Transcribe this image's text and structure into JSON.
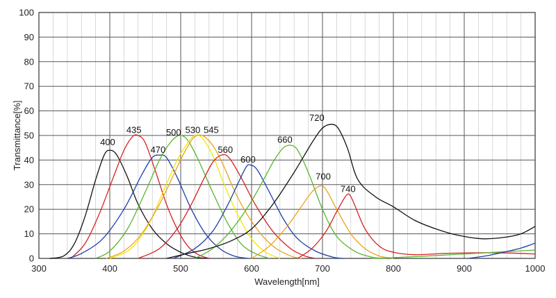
{
  "chart_data": {
    "type": "line",
    "title": "",
    "xlabel": "Wavelength[nm]",
    "ylabel": "Transmittance[%]",
    "xlim": [
      300,
      1000
    ],
    "ylim": [
      0,
      100
    ],
    "x_ticks": [
      "300",
      "400",
      "500",
      "600",
      "700",
      "800",
      "900",
      "1000"
    ],
    "y_ticks": [
      "0",
      "10",
      "20",
      "30",
      "40",
      "50",
      "60",
      "70",
      "80",
      "90",
      "100"
    ],
    "grid": true,
    "legend": "none",
    "series": [
      {
        "name": "400",
        "color": "#111111",
        "label_at": [
          397,
          46
        ],
        "points": [
          [
            315,
            0
          ],
          [
            335,
            1
          ],
          [
            350,
            6
          ],
          [
            365,
            17
          ],
          [
            380,
            32
          ],
          [
            392,
            42
          ],
          [
            400,
            44
          ],
          [
            410,
            42
          ],
          [
            425,
            33
          ],
          [
            440,
            22
          ],
          [
            460,
            12
          ],
          [
            480,
            6
          ],
          [
            500,
            2.5
          ],
          [
            520,
            0.5
          ],
          [
            540,
            0
          ]
        ]
      },
      {
        "name": "435",
        "color": "#d62020",
        "label_at": [
          434,
          51
        ],
        "points": [
          [
            345,
            0
          ],
          [
            365,
            6
          ],
          [
            385,
            18
          ],
          [
            405,
            33
          ],
          [
            420,
            44
          ],
          [
            432,
            49.5
          ],
          [
            440,
            50
          ],
          [
            450,
            47
          ],
          [
            465,
            35
          ],
          [
            480,
            22
          ],
          [
            495,
            12
          ],
          [
            510,
            5
          ],
          [
            525,
            1.5
          ],
          [
            540,
            0
          ]
        ]
      },
      {
        "name": "470",
        "color": "#1f3fa8",
        "label_at": [
          468,
          43
        ],
        "points": [
          [
            340,
            0
          ],
          [
            360,
            2
          ],
          [
            390,
            8
          ],
          [
            420,
            20
          ],
          [
            445,
            34
          ],
          [
            460,
            41
          ],
          [
            470,
            42
          ],
          [
            480,
            41
          ],
          [
            495,
            33
          ],
          [
            515,
            20
          ],
          [
            535,
            10
          ],
          [
            555,
            4
          ],
          [
            575,
            1
          ],
          [
            595,
            0
          ]
        ]
      },
      {
        "name": "500",
        "color": "#59b52e",
        "label_at": [
          490,
          50
        ],
        "points": [
          [
            380,
            0
          ],
          [
            400,
            3
          ],
          [
            425,
            12
          ],
          [
            450,
            27
          ],
          [
            470,
            40
          ],
          [
            485,
            47
          ],
          [
            498,
            50
          ],
          [
            510,
            48
          ],
          [
            525,
            40
          ],
          [
            545,
            27
          ],
          [
            565,
            15
          ],
          [
            585,
            6
          ],
          [
            605,
            2
          ],
          [
            625,
            0
          ]
        ]
      },
      {
        "name": "530",
        "color": "#f2e600",
        "label_at": [
          517,
          51
        ],
        "points": [
          [
            400,
            0
          ],
          [
            430,
            4
          ],
          [
            455,
            14
          ],
          [
            475,
            27
          ],
          [
            495,
            40
          ],
          [
            510,
            47
          ],
          [
            520,
            50
          ],
          [
            530,
            49
          ],
          [
            545,
            42
          ],
          [
            560,
            31
          ],
          [
            580,
            18
          ],
          [
            600,
            8
          ],
          [
            620,
            2.5
          ],
          [
            640,
            0
          ]
        ]
      },
      {
        "name": "545",
        "color": "#e8a318",
        "label_at": [
          543,
          51
        ],
        "points": [
          [
            395,
            0
          ],
          [
            420,
            3
          ],
          [
            445,
            10
          ],
          [
            470,
            22
          ],
          [
            490,
            34
          ],
          [
            505,
            43
          ],
          [
            518,
            49
          ],
          [
            530,
            50
          ],
          [
            545,
            46
          ],
          [
            560,
            38
          ],
          [
            580,
            25
          ],
          [
            605,
            13
          ],
          [
            630,
            5
          ],
          [
            655,
            1
          ],
          [
            670,
            0
          ]
        ]
      },
      {
        "name": "560",
        "color": "#d62020",
        "label_at": [
          563,
          43
        ],
        "points": [
          [
            440,
            0
          ],
          [
            470,
            4
          ],
          [
            495,
            12
          ],
          [
            515,
            22
          ],
          [
            532,
            32
          ],
          [
            545,
            39
          ],
          [
            557,
            42
          ],
          [
            568,
            41
          ],
          [
            585,
            33
          ],
          [
            605,
            22
          ],
          [
            630,
            11
          ],
          [
            655,
            4
          ],
          [
            675,
            1
          ],
          [
            690,
            0
          ]
        ]
      },
      {
        "name": "600",
        "color": "#1f3fa8",
        "label_at": [
          595,
          39
        ],
        "points": [
          [
            490,
            0
          ],
          [
            520,
            4
          ],
          [
            545,
            11
          ],
          [
            565,
            21
          ],
          [
            580,
            30
          ],
          [
            592,
            37
          ],
          [
            598,
            38
          ],
          [
            608,
            36
          ],
          [
            625,
            27
          ],
          [
            645,
            16
          ],
          [
            665,
            8
          ],
          [
            690,
            3
          ],
          [
            715,
            0.5
          ],
          [
            730,
            0
          ]
        ]
      },
      {
        "name": "660",
        "color": "#59b52e",
        "label_at": [
          647,
          47
        ],
        "points": [
          [
            520,
            0
          ],
          [
            545,
            4
          ],
          [
            570,
            11
          ],
          [
            595,
            21
          ],
          [
            615,
            31
          ],
          [
            632,
            40
          ],
          [
            645,
            45
          ],
          [
            655,
            46
          ],
          [
            665,
            44
          ],
          [
            680,
            35
          ],
          [
            700,
            20
          ],
          [
            720,
            9
          ],
          [
            745,
            3
          ],
          [
            770,
            0.5
          ],
          [
            790,
            0
          ]
        ]
      },
      {
        "name": "700",
        "color": "#e8a318",
        "label_at": [
          701,
          32
        ],
        "points": [
          [
            600,
            0
          ],
          [
            625,
            5
          ],
          [
            650,
            13
          ],
          [
            670,
            21
          ],
          [
            685,
            27
          ],
          [
            697,
            29.5
          ],
          [
            705,
            28
          ],
          [
            720,
            20
          ],
          [
            740,
            10
          ],
          [
            760,
            4
          ],
          [
            780,
            1
          ],
          [
            800,
            0
          ]
        ]
      },
      {
        "name": "720",
        "color": "#111111",
        "label_at": [
          692,
          56
        ],
        "points": [
          [
            480,
            0
          ],
          [
            510,
            2
          ],
          [
            540,
            4
          ],
          [
            570,
            7
          ],
          [
            600,
            12
          ],
          [
            630,
            22
          ],
          [
            660,
            35
          ],
          [
            685,
            47
          ],
          [
            700,
            53
          ],
          [
            712,
            54.5
          ],
          [
            722,
            53
          ],
          [
            735,
            45
          ],
          [
            750,
            32
          ],
          [
            775,
            25
          ],
          [
            800,
            21
          ],
          [
            830,
            15.5
          ],
          [
            860,
            12
          ],
          [
            890,
            9.5
          ],
          [
            925,
            8
          ],
          [
            955,
            8.5
          ],
          [
            980,
            10
          ],
          [
            1000,
            13
          ]
        ]
      },
      {
        "name": "740",
        "color": "#d62020",
        "label_at": [
          736,
          27
        ],
        "points": [
          [
            665,
            0
          ],
          [
            685,
            4
          ],
          [
            705,
            11
          ],
          [
            720,
            19
          ],
          [
            732,
            25
          ],
          [
            738,
            26
          ],
          [
            745,
            22
          ],
          [
            760,
            12
          ],
          [
            780,
            5
          ],
          [
            800,
            2.5
          ],
          [
            830,
            1.5
          ],
          [
            870,
            2
          ],
          [
            920,
            2.3
          ],
          [
            960,
            2.2
          ],
          [
            1000,
            1.8
          ]
        ]
      },
      {
        "name": "",
        "color": "#59b52e",
        "points": [
          [
            770,
            0
          ],
          [
            800,
            0.3
          ],
          [
            850,
            1
          ],
          [
            900,
            1.8
          ],
          [
            950,
            2.6
          ],
          [
            1000,
            3.4
          ]
        ]
      },
      {
        "name": "",
        "color": "#1f3fa8",
        "points": [
          [
            905,
            0
          ],
          [
            930,
            1
          ],
          [
            955,
            2.5
          ],
          [
            980,
            4.2
          ],
          [
            1000,
            6.2
          ]
        ]
      }
    ]
  }
}
